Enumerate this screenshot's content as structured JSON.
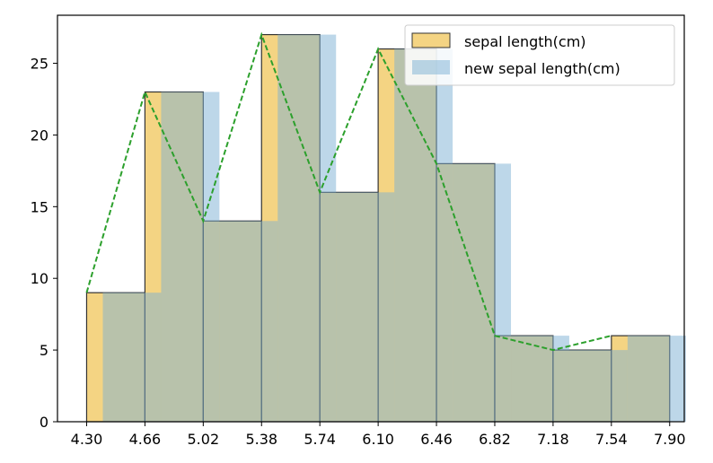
{
  "chart_data": {
    "type": "bar",
    "title": "",
    "xlabel": "",
    "ylabel": "",
    "xlim": [
      4.12,
      7.99
    ],
    "ylim": [
      0,
      28.35
    ],
    "grid": false,
    "legend_position": "top-right",
    "x_tick_labels": [
      "4.30",
      "4.66",
      "5.02",
      "5.38",
      "5.74",
      "6.10",
      "6.46",
      "6.82",
      "7.18",
      "7.54",
      "7.90"
    ],
    "y_ticks": [
      0,
      5,
      10,
      15,
      20,
      25
    ],
    "bins": [
      4.3,
      4.66,
      5.02,
      5.38,
      5.74,
      6.1,
      6.46,
      6.82,
      7.18,
      7.54,
      7.9
    ],
    "series": [
      {
        "name": "sepal length(cm)",
        "kind": "histogram",
        "color": "#f0c24f",
        "edge_color": "#333333",
        "x_start": [
          4.3,
          4.66,
          5.02,
          5.38,
          5.74,
          6.1,
          6.46,
          6.82,
          7.18,
          7.54
        ],
        "values": [
          9,
          23,
          14,
          27,
          16,
          26,
          18,
          6,
          5,
          6
        ]
      },
      {
        "name": "new sepal length(cm)",
        "kind": "histogram",
        "color": "#7bafd4",
        "x_start": [
          4.4,
          4.76,
          5.12,
          5.48,
          5.84,
          6.2,
          6.56,
          6.92,
          7.28,
          7.64
        ],
        "values": [
          9,
          23,
          14,
          27,
          16,
          26,
          18,
          6,
          5,
          6
        ]
      },
      {
        "name": "",
        "kind": "line",
        "color": "#2ca02c",
        "style": "dashed",
        "x": [
          4.3,
          4.66,
          5.02,
          5.38,
          5.74,
          6.1,
          6.46,
          6.82,
          7.18,
          7.54
        ],
        "values": [
          9,
          23,
          14,
          27,
          16,
          26,
          18,
          6,
          5,
          6
        ]
      }
    ]
  }
}
